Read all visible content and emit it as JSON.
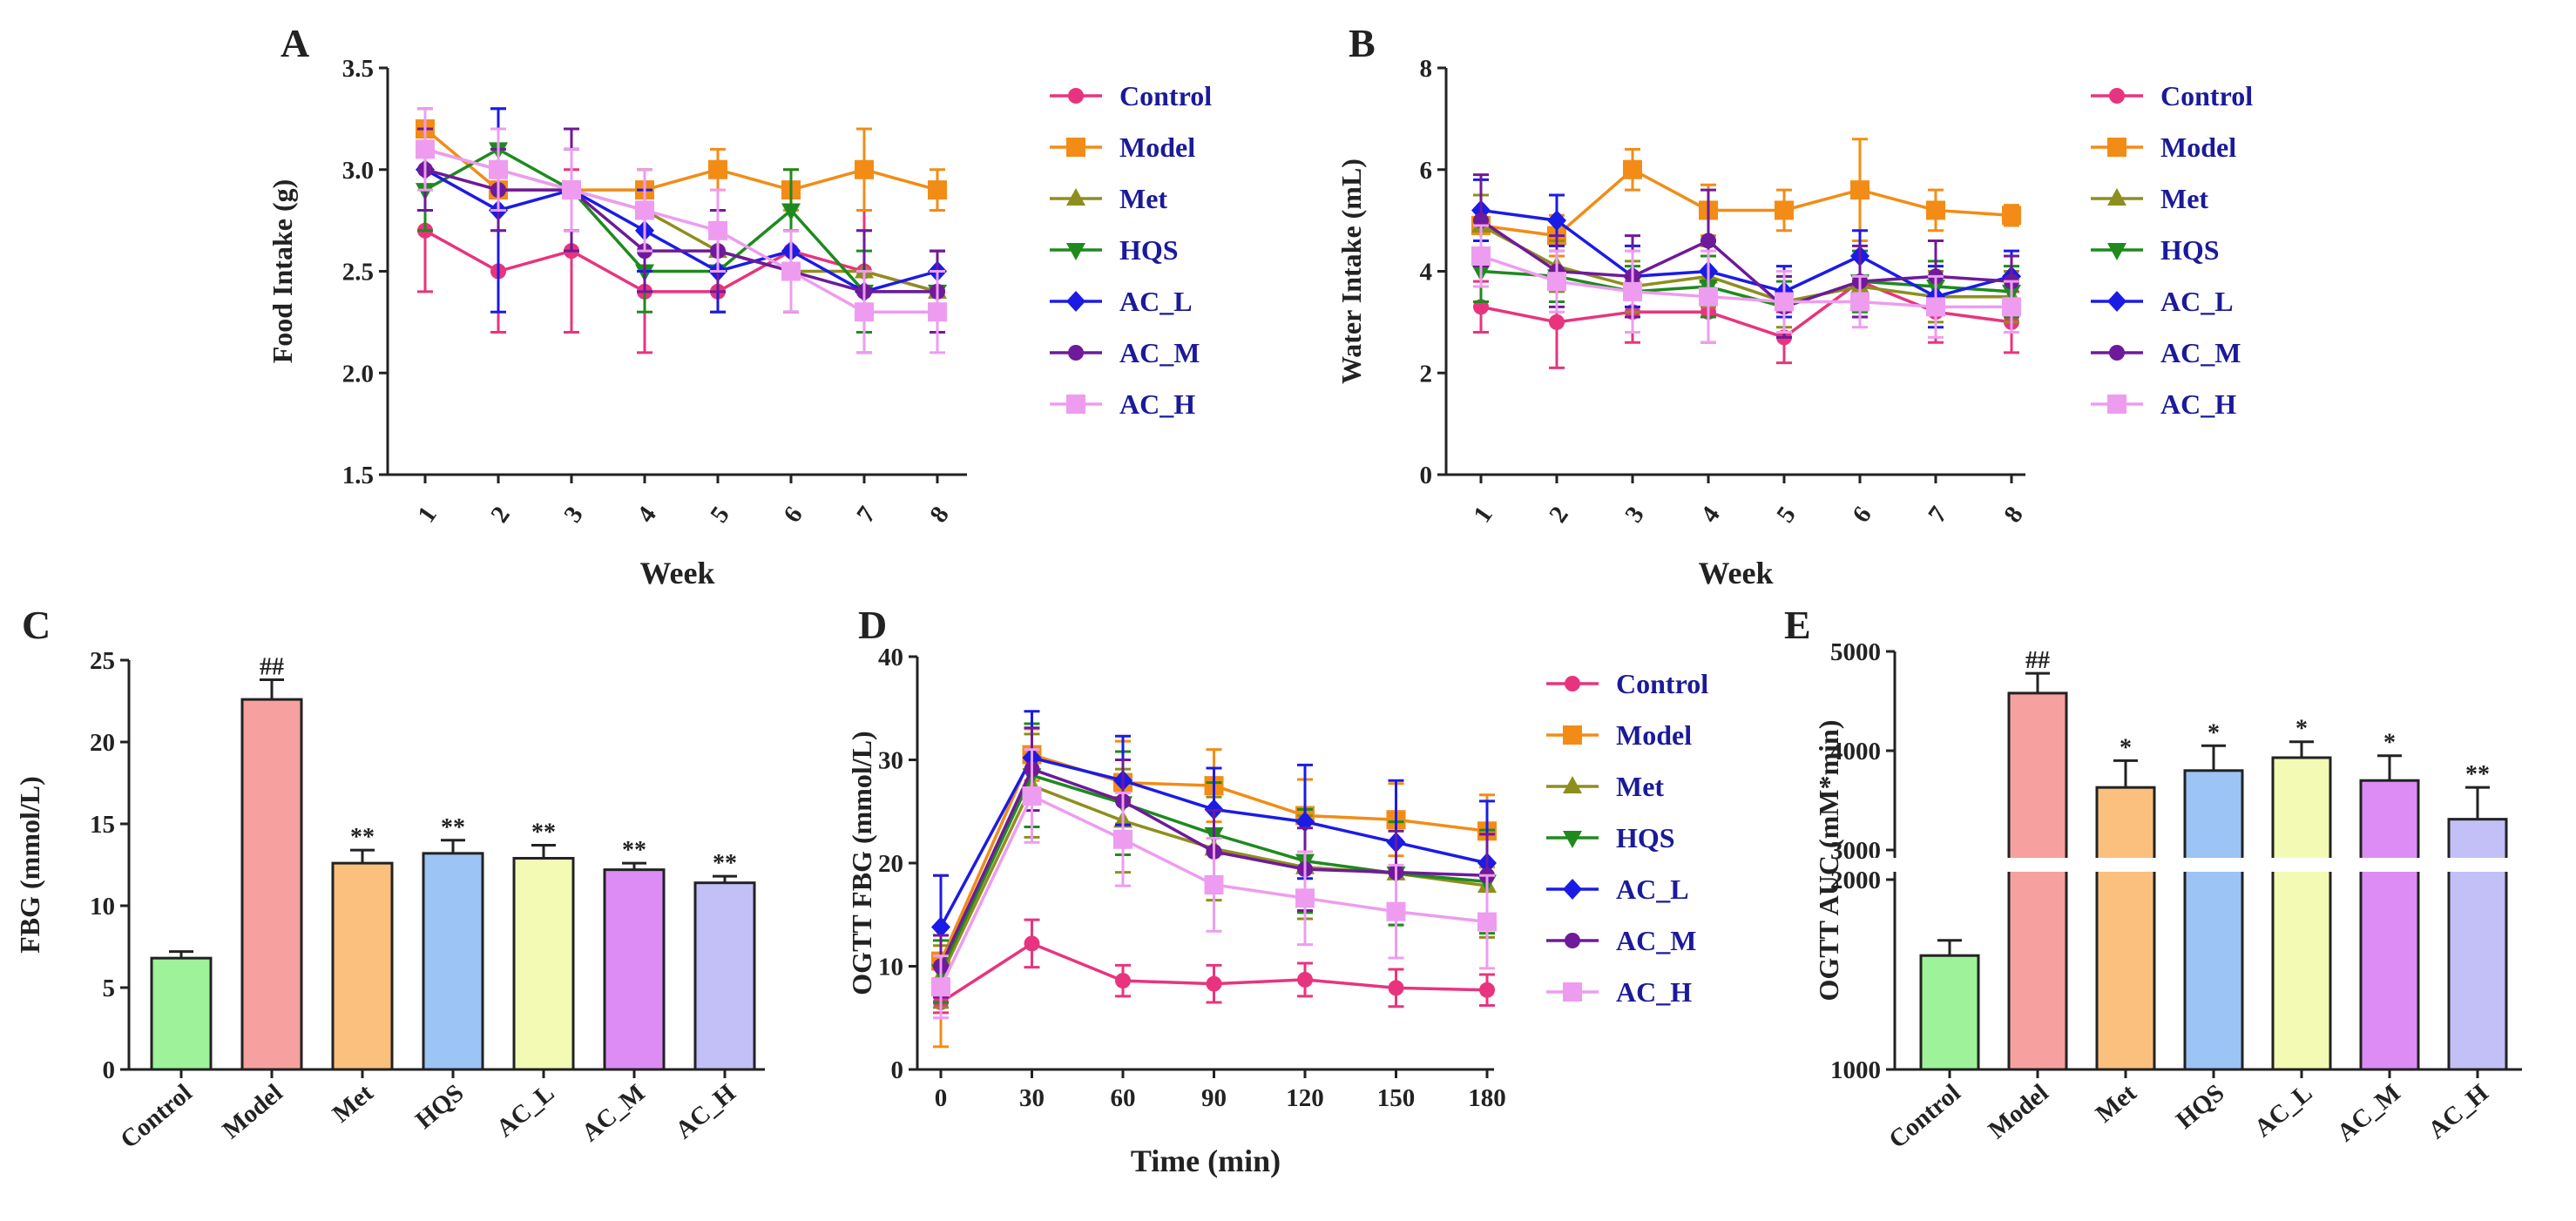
{
  "figure": {
    "colors": {
      "Control": "#e8347e",
      "Model": "#f28c16",
      "Met": "#8e8e1e",
      "HQS": "#1e8a1e",
      "AC_L": "#1b1be6",
      "AC_M": "#6e1a9a",
      "AC_H": "#ee9cf0"
    },
    "barColors": {
      "Control": "#9ef29a",
      "Model": "#f7a0a0",
      "Met": "#fbbf7e",
      "HQS": "#9cc4f4",
      "AC_L": "#f2fab4",
      "AC_M": "#dc8cf4",
      "AC_H": "#c2c0f7"
    }
  },
  "chart_data": [
    {
      "panel": "A",
      "type": "line",
      "xlabel": "Week",
      "ylabel": "Food Intake (g)",
      "x": [
        1,
        2,
        3,
        4,
        5,
        6,
        7,
        8
      ],
      "xticks": [
        "1",
        "2",
        "3",
        "4",
        "5",
        "6",
        "7",
        "8"
      ],
      "ylim": [
        1.5,
        3.5
      ],
      "yticks": [
        "1.5",
        "2.0",
        "2.5",
        "3.0",
        "3.5"
      ],
      "series": [
        {
          "name": "Control",
          "values": [
            2.7,
            2.5,
            2.6,
            2.4,
            2.4,
            2.6,
            2.5,
            2.4
          ],
          "err": [
            0.3,
            0.3,
            0.4,
            0.3,
            0.1,
            0.1,
            0.3,
            0.2
          ]
        },
        {
          "name": "Model",
          "values": [
            3.2,
            2.9,
            2.9,
            2.9,
            3.0,
            2.9,
            3.0,
            2.9
          ],
          "err": [
            0.1,
            0.2,
            0.2,
            0.1,
            0.1,
            0.1,
            0.2,
            0.1
          ]
        },
        {
          "name": "Met",
          "values": [
            3.1,
            3.0,
            2.9,
            2.8,
            2.6,
            2.5,
            2.5,
            2.4
          ],
          "err": [
            0.2,
            0.2,
            0.2,
            0.2,
            0.2,
            0.2,
            0.2,
            0.2
          ]
        },
        {
          "name": "HQS",
          "values": [
            2.9,
            3.1,
            2.9,
            2.5,
            2.5,
            2.8,
            2.4,
            2.4
          ],
          "err": [
            0.2,
            0.2,
            0.2,
            0.2,
            0.2,
            0.2,
            0.2,
            0.2
          ]
        },
        {
          "name": "AC_L",
          "values": [
            3.0,
            2.8,
            2.9,
            2.7,
            2.5,
            2.6,
            2.4,
            2.5
          ],
          "err": [
            0.2,
            0.5,
            0.2,
            0.2,
            0.2,
            0.1,
            0.1,
            0.1
          ]
        },
        {
          "name": "AC_M",
          "values": [
            3.0,
            2.9,
            2.9,
            2.6,
            2.6,
            2.5,
            2.4,
            2.4
          ],
          "err": [
            0.2,
            0.2,
            0.3,
            0.2,
            0.2,
            0.2,
            0.3,
            0.2
          ]
        },
        {
          "name": "AC_H",
          "values": [
            3.1,
            3.0,
            2.9,
            2.8,
            2.7,
            2.5,
            2.3,
            2.3
          ],
          "err": [
            0.2,
            0.2,
            0.2,
            0.2,
            0.2,
            0.2,
            0.2,
            0.2
          ]
        }
      ]
    },
    {
      "panel": "B",
      "type": "line",
      "xlabel": "Week",
      "ylabel": "Water Intake (mL)",
      "x": [
        1,
        2,
        3,
        4,
        5,
        6,
        7,
        8
      ],
      "xticks": [
        "1",
        "2",
        "3",
        "4",
        "5",
        "6",
        "7",
        "8"
      ],
      "ylim": [
        0,
        8
      ],
      "yticks": [
        "0",
        "2",
        "4",
        "6",
        "8"
      ],
      "series": [
        {
          "name": "Control",
          "values": [
            3.3,
            3.0,
            3.2,
            3.2,
            2.7,
            3.8,
            3.2,
            3.0
          ],
          "err": [
            0.5,
            0.9,
            0.6,
            0.6,
            0.5,
            0.5,
            0.6,
            0.6
          ]
        },
        {
          "name": "Model",
          "values": [
            4.9,
            4.7,
            6.0,
            5.2,
            5.2,
            5.6,
            5.2,
            5.1
          ],
          "err": [
            0.6,
            0.4,
            0.4,
            0.5,
            0.4,
            1.0,
            0.4,
            0.2
          ]
        },
        {
          "name": "Met",
          "values": [
            4.9,
            4.1,
            3.7,
            3.9,
            3.4,
            3.7,
            3.5,
            3.5
          ],
          "err": [
            0.6,
            0.5,
            0.5,
            0.6,
            0.5,
            0.6,
            0.5,
            0.5
          ]
        },
        {
          "name": "HQS",
          "values": [
            4.0,
            3.9,
            3.6,
            3.7,
            3.3,
            3.8,
            3.7,
            3.6
          ],
          "err": [
            0.6,
            0.5,
            0.5,
            0.6,
            0.5,
            0.6,
            0.5,
            0.5
          ]
        },
        {
          "name": "AC_L",
          "values": [
            5.2,
            5.0,
            3.9,
            4.0,
            3.6,
            4.3,
            3.5,
            3.9
          ],
          "err": [
            0.6,
            0.5,
            0.6,
            0.6,
            0.5,
            0.5,
            0.6,
            0.5
          ]
        },
        {
          "name": "AC_M",
          "values": [
            5.0,
            4.0,
            3.9,
            4.6,
            3.3,
            3.8,
            3.9,
            3.8
          ],
          "err": [
            0.9,
            0.7,
            0.8,
            1.0,
            0.6,
            0.7,
            0.7,
            0.5
          ]
        },
        {
          "name": "AC_H",
          "values": [
            4.3,
            3.8,
            3.6,
            3.5,
            3.4,
            3.4,
            3.3,
            3.3
          ],
          "err": [
            0.6,
            0.6,
            0.8,
            0.9,
            0.6,
            0.5,
            0.6,
            0.5
          ]
        }
      ]
    },
    {
      "panel": "C",
      "type": "bar",
      "xlabel": "",
      "ylabel": "FBG (mmol/L)",
      "categories": [
        "Control",
        "Model",
        "Met",
        "HQS",
        "AC_L",
        "AC_M",
        "AC_H"
      ],
      "values": [
        6.8,
        22.6,
        12.6,
        13.2,
        12.9,
        12.2,
        11.4
      ],
      "err": [
        0.4,
        1.2,
        0.8,
        0.8,
        0.8,
        0.4,
        0.4
      ],
      "annotations": [
        "",
        "##",
        "**",
        "**",
        "**",
        "**",
        "**"
      ],
      "ylim": [
        0,
        25
      ],
      "yticks": [
        "0",
        "5",
        "10",
        "15",
        "20",
        "25"
      ]
    },
    {
      "panel": "D",
      "type": "line",
      "xlabel": "Time (min)",
      "ylabel": "OGTT FBG (mmol/L)",
      "x": [
        0,
        30,
        60,
        90,
        120,
        150,
        180
      ],
      "xticks": [
        "0",
        "30",
        "60",
        "90",
        "120",
        "150",
        "180"
      ],
      "ylim": [
        0,
        40
      ],
      "yticks": [
        "0",
        "10",
        "20",
        "30",
        "40"
      ],
      "series": [
        {
          "name": "Control",
          "values": [
            6.5,
            12.2,
            8.6,
            8.3,
            8.7,
            7.9,
            7.7
          ],
          "err": [
            1.0,
            2.3,
            1.5,
            1.8,
            1.6,
            1.8,
            1.5
          ]
        },
        {
          "name": "Model",
          "values": [
            10.5,
            30.5,
            27.8,
            27.5,
            24.6,
            24.2,
            23.1
          ],
          "err": [
            8.3,
            2.5,
            4.0,
            3.5,
            3.5,
            3.5,
            3.5
          ]
        },
        {
          "name": "Met",
          "values": [
            9.0,
            27.5,
            24.1,
            21.4,
            19.6,
            19.0,
            17.8
          ],
          "err": [
            3.0,
            5.0,
            5.0,
            5.0,
            5.0,
            5.0,
            5.0
          ]
        },
        {
          "name": "HQS",
          "values": [
            9.5,
            28.5,
            25.8,
            22.8,
            20.2,
            19.0,
            18.2
          ],
          "err": [
            3.0,
            5.0,
            5.0,
            5.0,
            5.0,
            5.0,
            5.0
          ]
        },
        {
          "name": "AC_L",
          "values": [
            13.8,
            30.2,
            28.0,
            25.2,
            24.0,
            22.0,
            20.0
          ],
          "err": [
            5.0,
            4.5,
            4.3,
            4.0,
            5.5,
            6.0,
            6.0
          ]
        },
        {
          "name": "AC_M",
          "values": [
            10.0,
            29.1,
            26.0,
            21.1,
            19.4,
            19.1,
            18.8
          ],
          "err": [
            3.0,
            4.0,
            4.0,
            4.0,
            4.0,
            4.0,
            4.0
          ]
        },
        {
          "name": "AC_H",
          "values": [
            8.0,
            26.5,
            22.3,
            17.9,
            16.6,
            15.3,
            14.3
          ],
          "err": [
            3.0,
            4.5,
            4.5,
            4.5,
            4.5,
            4.5,
            4.5
          ]
        }
      ]
    },
    {
      "panel": "E",
      "type": "bar",
      "xlabel": "",
      "ylabel": "OGTT AUC (mM*min)",
      "categories": [
        "Control",
        "Model",
        "Met",
        "HQS",
        "AC_L",
        "AC_M",
        "AC_H"
      ],
      "values": [
        1600,
        4580,
        3630,
        3800,
        3930,
        3700,
        3310
      ],
      "err": [
        80,
        200,
        270,
        250,
        160,
        250,
        320
      ],
      "annotations": [
        "",
        "##",
        "*",
        "*",
        "*",
        "*",
        "**"
      ],
      "axis_break": [
        2000,
        3000
      ],
      "lower_segment": {
        "ylim": [
          1000,
          2000
        ],
        "yticks": [
          "1000",
          "2000"
        ]
      },
      "upper_segment": {
        "ylim": [
          3000,
          5000
        ],
        "yticks": [
          "3000",
          "4000",
          "5000"
        ]
      }
    }
  ]
}
